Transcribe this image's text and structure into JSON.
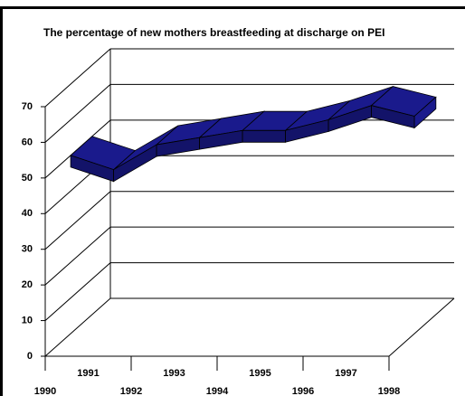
{
  "chart_data": {
    "type": "line3d",
    "title": "The percentage of new mothers breastfeeding at discharge on PEI",
    "categories": [
      "1990",
      "1991",
      "1992",
      "1993",
      "1994",
      "1995",
      "1996",
      "1997",
      "1998"
    ],
    "values": [
      50,
      46,
      53,
      55,
      57,
      57,
      60,
      64,
      61
    ],
    "color": "#1a1a8c",
    "ylim": [
      0,
      70
    ],
    "yticks": [
      0,
      10,
      20,
      30,
      40,
      50,
      60,
      70
    ],
    "grid": true
  }
}
